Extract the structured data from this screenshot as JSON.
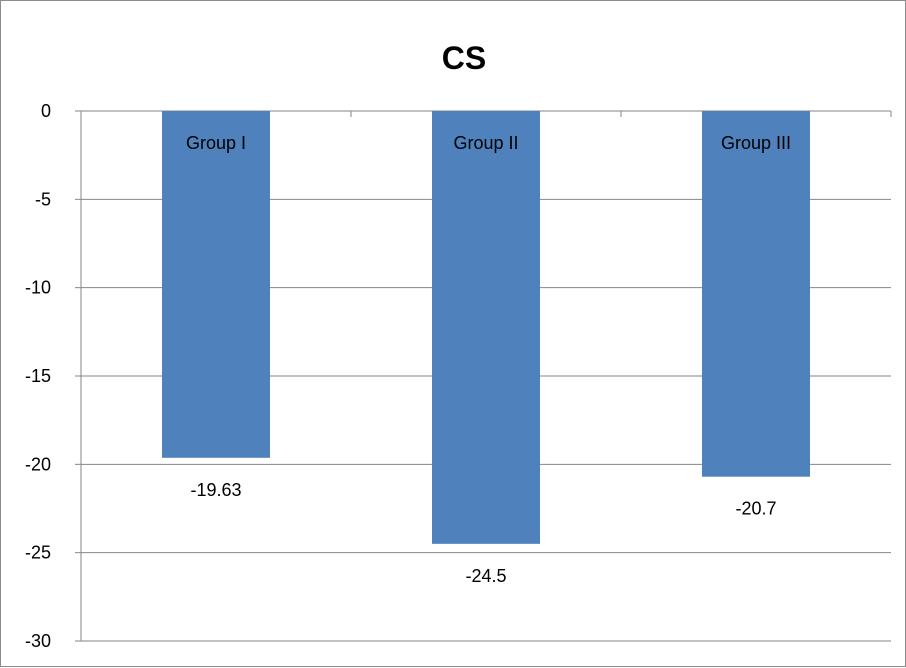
{
  "chart_data": {
    "type": "bar",
    "title": "CS",
    "xlabel": "",
    "ylabel": "",
    "categories": [
      "Group I",
      "Group II",
      "Group III"
    ],
    "values": [
      -19.63,
      -24.5,
      -20.7
    ],
    "value_labels": [
      "-19.63",
      "-24.5",
      "-20.7"
    ],
    "ylim": [
      -30,
      0
    ],
    "yticks": [
      0,
      -5,
      -10,
      -15,
      -20,
      -25,
      -30
    ],
    "ytick_labels": [
      "0",
      "-5",
      "-10",
      "-15",
      "-20",
      "-25",
      "-30"
    ],
    "grid": true,
    "legend": "none",
    "category_label_position": "inside-top-of-bar",
    "colors": {
      "bar": "#4f81bd",
      "grid": "#868686",
      "axis": "#868686",
      "border": "#8c8c8c"
    }
  }
}
